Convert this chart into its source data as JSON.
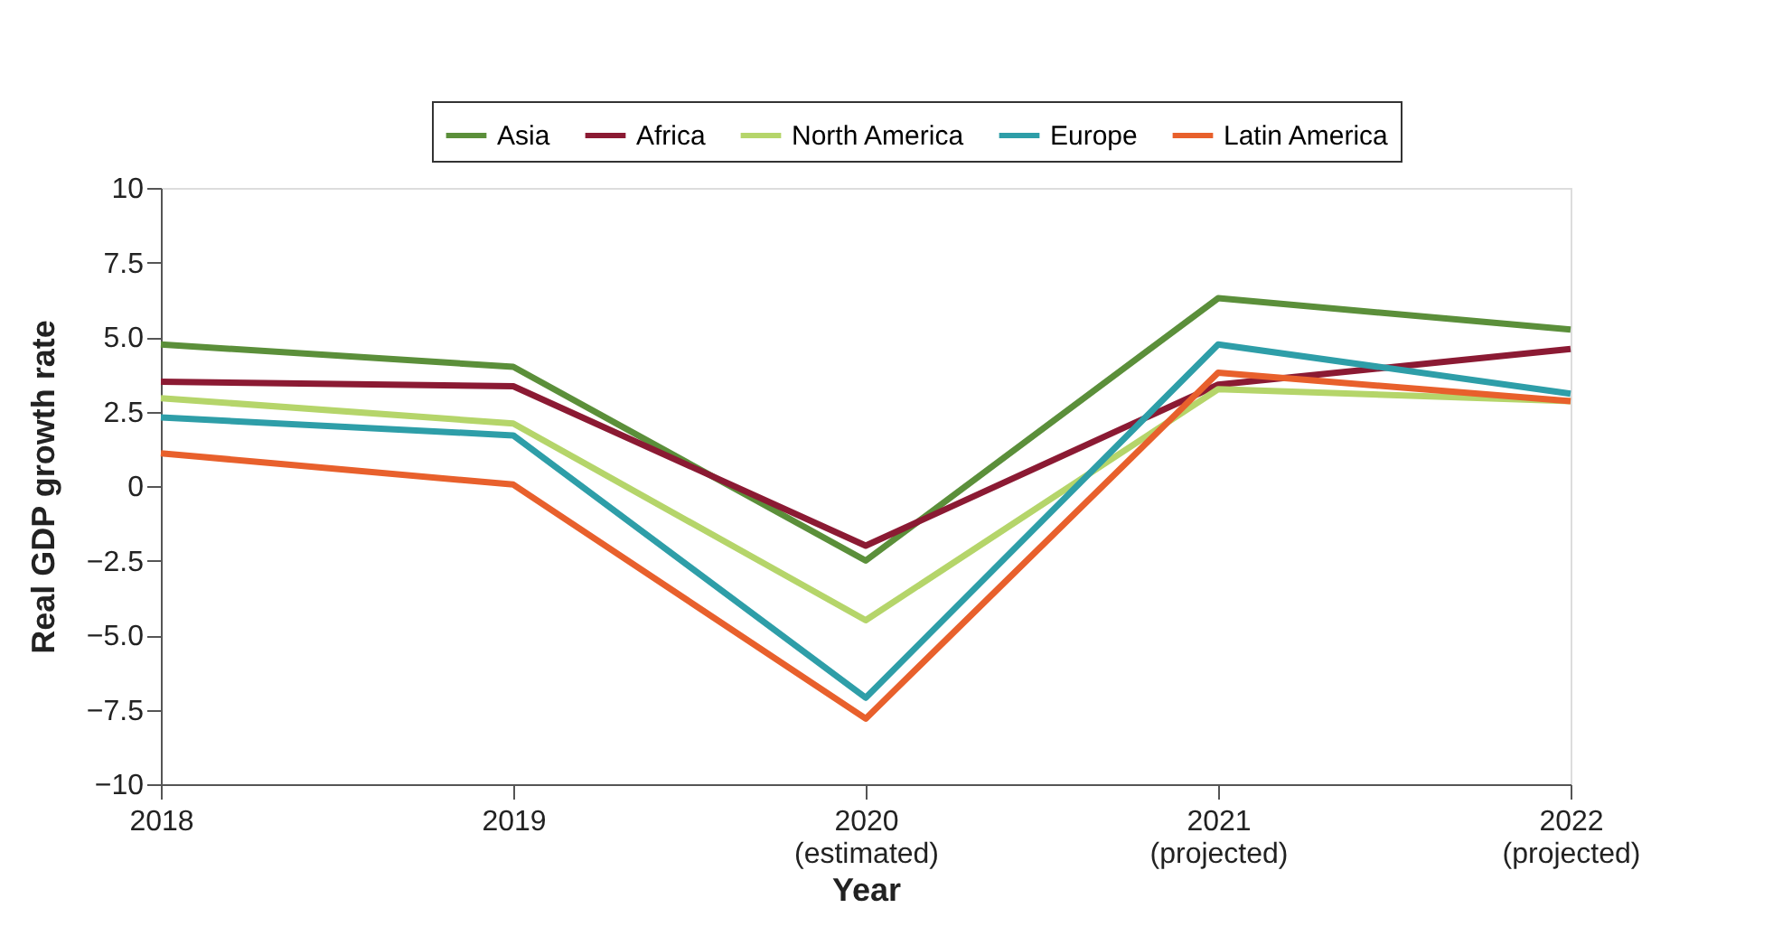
{
  "chart_data": {
    "type": "line",
    "xlabel": "Year",
    "ylabel": "Real GDP growth rate",
    "categories": [
      "2018",
      "2019",
      "2020\n(estimated)",
      "2021\n(projected)",
      "2022\n(projected)"
    ],
    "series": [
      {
        "name": "Asia",
        "color": "#5b8f3a",
        "values": [
          4.75,
          4.0,
          -2.5,
          6.3,
          5.25
        ]
      },
      {
        "name": "Africa",
        "color": "#8b1a33",
        "values": [
          3.5,
          3.35,
          -2.0,
          3.4,
          4.6
        ]
      },
      {
        "name": "North America",
        "color": "#b5d56a",
        "values": [
          2.95,
          2.1,
          -4.5,
          3.25,
          2.85
        ]
      },
      {
        "name": "Europe",
        "color": "#2e9ea8",
        "values": [
          2.3,
          1.7,
          -7.1,
          4.75,
          3.1
        ]
      },
      {
        "name": "Latin America",
        "color": "#e8602c",
        "values": [
          1.1,
          0.05,
          -7.8,
          3.8,
          2.85
        ]
      }
    ],
    "ylim": [
      -10,
      10
    ],
    "yticks": [
      {
        "value": -10,
        "label": "−10"
      },
      {
        "value": -7.5,
        "label": "−7.5"
      },
      {
        "value": -5,
        "label": "−5.0"
      },
      {
        "value": -2.5,
        "label": "−2.5"
      },
      {
        "value": 0,
        "label": "0"
      },
      {
        "value": 2.5,
        "label": "2.5"
      },
      {
        "value": 5,
        "label": "5.0"
      },
      {
        "value": 7.5,
        "label": "7.5"
      },
      {
        "value": 10,
        "label": "10"
      }
    ],
    "grid": false,
    "legend": "top right",
    "marker": "none",
    "line_style": "solid"
  }
}
